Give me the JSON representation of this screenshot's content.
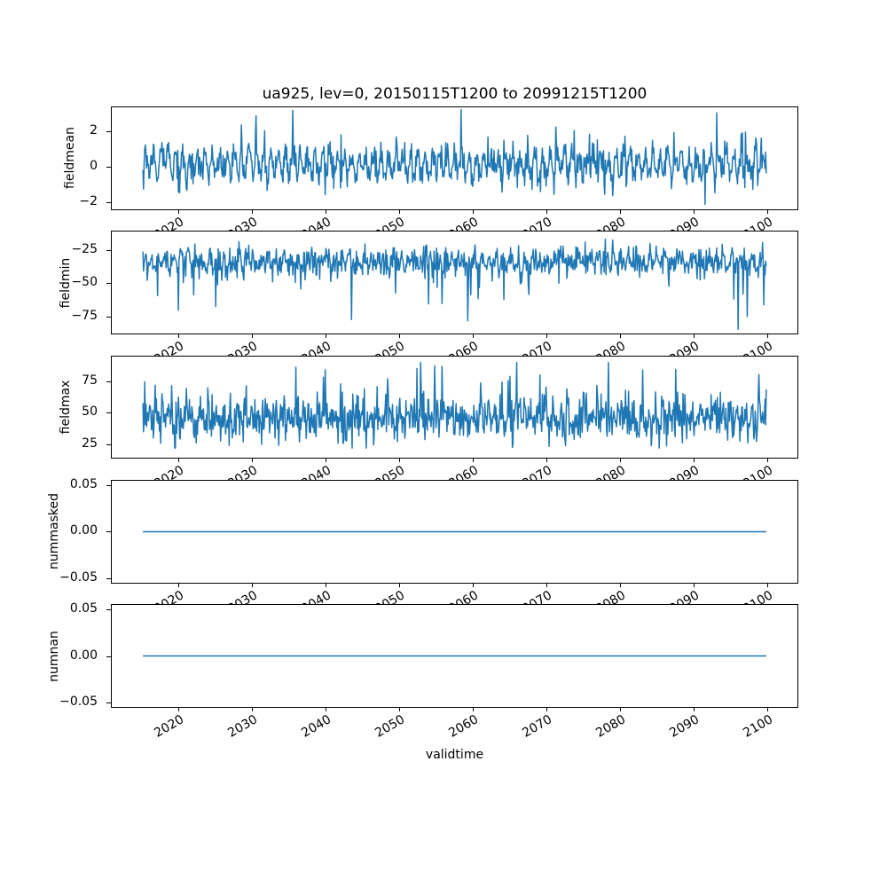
{
  "figure": {
    "background": "#ffffff",
    "axis_color": "#000000",
    "text_color": "#000000"
  },
  "chart_data": {
    "type": "line",
    "title": "ua925, lev=0, 20150115T1200 to 20991215T1200",
    "xlabel": "validtime",
    "line_color": "#1f77b4",
    "legend": "none",
    "grid": false,
    "x_axis": {
      "data_start_year": 2015.042,
      "data_end_year": 2099.958,
      "points": 1020,
      "xlim": [
        2010.796,
        2104.204
      ],
      "xticks": [
        2020,
        2030,
        2040,
        2050,
        2060,
        2070,
        2080,
        2090,
        2100
      ],
      "xtick_labels": [
        "2020",
        "2030",
        "2040",
        "2050",
        "2060",
        "2070",
        "2080",
        "2090",
        "2100"
      ],
      "tick_label_rotation_deg": 30
    },
    "subplots": [
      {
        "name": "fieldmean",
        "ylabel": "fieldmean",
        "ylim": [
          -2.47,
          3.43
        ],
        "yticks": [
          -2,
          0,
          2
        ],
        "ytick_labels": [
          "−2",
          "0",
          "2"
        ],
        "profile": {
          "kind": "noisy",
          "mean": 0.12,
          "seasonal_amp": 0.6,
          "seasonal_phase": -1.2,
          "noise_std": 0.42,
          "spike_up_prob": 0.035,
          "spike_up_mag": 1.9,
          "spike_down_prob": 0.012,
          "spike_down_mag": 1.1,
          "min": -2.18,
          "max": 3.3,
          "seed": 7,
          "forced": [
            [
              2035.5,
              3.25
            ],
            [
              2058.4,
              3.3
            ],
            [
              2091.6,
              -2.18
            ],
            [
              2093.2,
              3.1
            ]
          ]
        }
      },
      {
        "name": "fieldmin",
        "ylabel": "fieldmin",
        "ylim": [
          -88.6,
          -10.6
        ],
        "yticks": [
          -75,
          -50,
          -25
        ],
        "ytick_labels": [
          "−75",
          "−50",
          "−25"
        ],
        "profile": {
          "kind": "noisy",
          "mean": -33.5,
          "seasonal_amp": 3.5,
          "seasonal_phase": 0.8,
          "noise_std": 5.5,
          "spike_up_prob": 0.0,
          "spike_up_mag": 0,
          "spike_down_prob": 0.028,
          "spike_down_mag": 32,
          "min": -85.5,
          "max": -16.5,
          "seed": 13,
          "forced": [
            [
              2096.1,
              -85.5
            ],
            [
              2043.5,
              -78
            ],
            [
              2059.3,
              -79
            ],
            [
              2025.0,
              -68
            ]
          ]
        }
      },
      {
        "name": "fieldmax",
        "ylabel": "fieldmax",
        "ylim": [
          13.1,
          95.7
        ],
        "yticks": [
          25,
          50,
          75
        ],
        "ytick_labels": [
          "25",
          "50",
          "75"
        ],
        "profile": {
          "kind": "noisy",
          "mean": 46,
          "seasonal_amp": 4,
          "seasonal_phase": 2.2,
          "noise_std": 9,
          "spike_up_prob": 0.03,
          "spike_up_mag": 32,
          "spike_down_prob": 0.004,
          "spike_down_mag": 10,
          "min": 21.5,
          "max": 91,
          "seed": 23,
          "forced": [
            [
              2078.5,
              91
            ],
            [
              2035.9,
              87
            ],
            [
              2052.4,
              86
            ]
          ]
        }
      },
      {
        "name": "nummasked",
        "ylabel": "nummasked",
        "ylim": [
          -0.0556,
          0.0556
        ],
        "yticks": [
          -0.05,
          0,
          0.05
        ],
        "ytick_labels": [
          "−0.05",
          "0.00",
          "0.05"
        ],
        "profile": {
          "kind": "constant",
          "value": 0
        }
      },
      {
        "name": "numnan",
        "ylabel": "numnan",
        "ylim": [
          -0.0556,
          0.0556
        ],
        "yticks": [
          -0.05,
          0,
          0.05
        ],
        "ytick_labels": [
          "−0.05",
          "0.00",
          "0.05"
        ],
        "profile": {
          "kind": "constant",
          "value": 0
        }
      }
    ]
  }
}
